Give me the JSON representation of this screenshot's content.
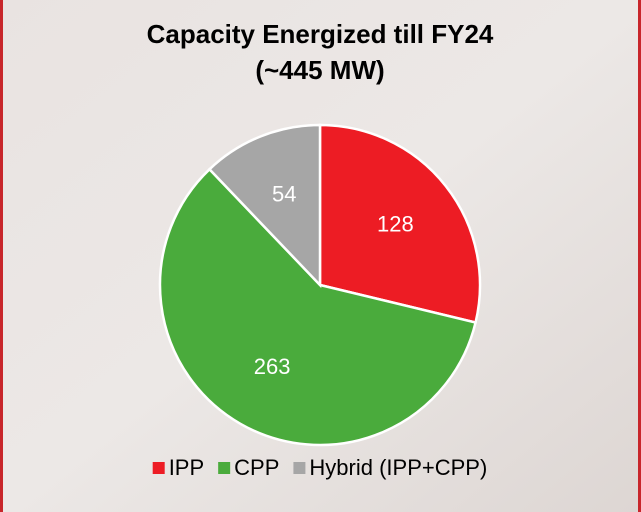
{
  "chart_data": {
    "type": "pie",
    "title": "Capacity Energized till FY24",
    "subtitle": "(~445 MW)",
    "categories": [
      "IPP",
      "CPP",
      "Hybrid (IPP+CPP)"
    ],
    "values": [
      128,
      263,
      54
    ],
    "colors": [
      "#ed1c24",
      "#4aab3c",
      "#a6a6a6"
    ]
  }
}
